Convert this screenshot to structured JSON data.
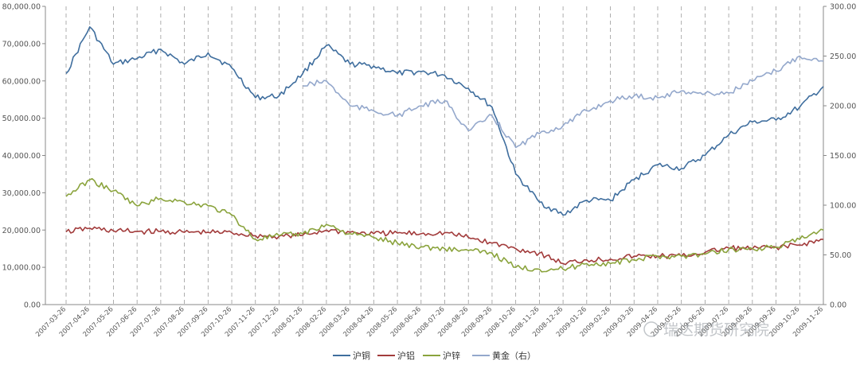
{
  "chart_data": {
    "type": "line",
    "title": "",
    "left_axis": {
      "range": [
        0,
        80000
      ],
      "ticks": [
        "0.00",
        "10,000.00",
        "20,000.00",
        "30,000.00",
        "40,000.00",
        "50,000.00",
        "60,000.00",
        "70,000.00",
        "80,000.00"
      ]
    },
    "right_axis": {
      "range": [
        0,
        300
      ],
      "ticks": [
        "0.00",
        "50.00",
        "100.00",
        "150.00",
        "200.00",
        "250.00",
        "300.00"
      ]
    },
    "x_labels": [
      "2007-03-26",
      "2007-04-26",
      "2007-05-26",
      "2007-06-26",
      "2007-07-26",
      "2007-08-26",
      "2007-09-26",
      "2007-10-26",
      "2007-11-26",
      "2007-12-26",
      "2008-01-26",
      "2008-02-26",
      "2008-03-26",
      "2008-04-26",
      "2008-05-26",
      "2008-06-26",
      "2008-07-26",
      "2008-08-26",
      "2008-09-26",
      "2008-10-26",
      "2008-11-26",
      "2008-12-26",
      "2009-01-26",
      "2009-02-26",
      "2009-03-26",
      "2009-04-26",
      "2009-05-26",
      "2009-06-26",
      "2009-07-26",
      "2009-08-26",
      "2009-09-26",
      "2009-10-26",
      "2009-11-26"
    ],
    "grid": "vertical dashed lines at each month",
    "legend_position": "bottom",
    "series": [
      {
        "name": "沪铜",
        "color": "#3f6e9e",
        "axis": "left",
        "values": [
          62000,
          74500,
          64500,
          66000,
          68500,
          64500,
          67500,
          63500,
          55500,
          56000,
          62000,
          69500,
          64500,
          64000,
          62000,
          62500,
          61500,
          58000,
          53000,
          35000,
          27500,
          24000,
          28000,
          28000,
          33500,
          37500,
          36500,
          40000,
          45500,
          49000,
          49500,
          53000,
          58500
        ]
      },
      {
        "name": "沪铝",
        "color": "#a23b3b",
        "axis": "left",
        "values": [
          19500,
          20500,
          19800,
          19600,
          19600,
          19400,
          19400,
          19300,
          18500,
          18300,
          18600,
          20000,
          19400,
          19000,
          19200,
          19000,
          19300,
          18000,
          16500,
          15000,
          13800,
          11000,
          12000,
          12200,
          13000,
          13000,
          13000,
          14000,
          15200,
          15000,
          15400,
          16000,
          17500
        ]
      },
      {
        "name": "沪锌",
        "color": "#8aa33c",
        "axis": "left",
        "values": [
          29000,
          33500,
          30500,
          26500,
          28500,
          27500,
          26500,
          24000,
          17500,
          18500,
          19000,
          21500,
          19000,
          18000,
          16500,
          15500,
          15000,
          14500,
          13800,
          10000,
          9500,
          9500,
          11000,
          11000,
          12000,
          13000,
          13000,
          13500,
          14800,
          15000,
          15400,
          17500,
          20000
        ]
      },
      {
        "name": "黄金（右）",
        "color": "#94a8cc",
        "axis": "right",
        "values": [
          null,
          null,
          null,
          null,
          null,
          null,
          null,
          null,
          null,
          null,
          220,
          225,
          200,
          195,
          190,
          200,
          205,
          175,
          190,
          158,
          172,
          180,
          195,
          205,
          210,
          208,
          215,
          212,
          213,
          225,
          235,
          250,
          245
        ]
      }
    ]
  },
  "legend": [
    {
      "label": "沪铜",
      "color": "#3f6e9e"
    },
    {
      "label": "沪铝",
      "color": "#a23b3b"
    },
    {
      "label": "沪锌",
      "color": "#8aa33c"
    },
    {
      "label": "黄金（右）",
      "color": "#94a8cc"
    }
  ],
  "watermark": "瑞达期货研究院"
}
